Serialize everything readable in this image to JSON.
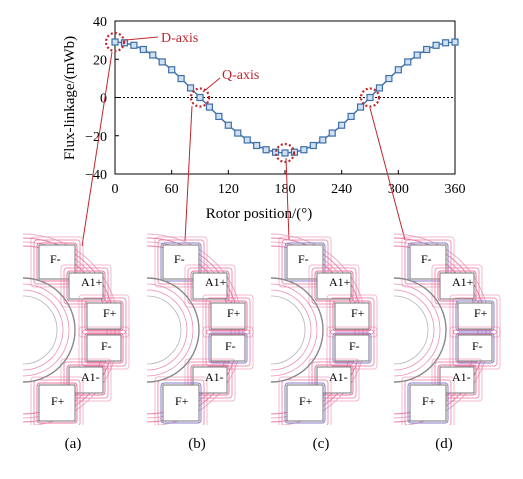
{
  "chart_data": {
    "type": "line",
    "xlabel": "Rotor position/(°)",
    "ylabel": "Flux-linkage/(mWb)",
    "xlim": [
      0,
      360
    ],
    "ylim": [
      -40,
      40
    ],
    "xticks": [
      "0",
      "60",
      "120",
      "180",
      "240",
      "300",
      "360"
    ],
    "yticks": [
      "40",
      "20",
      "0",
      "−20",
      "−40"
    ],
    "zero_line": "dotted",
    "grid": false,
    "series": [
      {
        "color": "#3e6fa8",
        "marker": "square",
        "x": [
          0,
          10,
          20,
          30,
          40,
          50,
          60,
          70,
          80,
          90,
          100,
          110,
          120,
          130,
          140,
          150,
          160,
          170,
          180,
          190,
          200,
          210,
          220,
          230,
          240,
          250,
          260,
          270,
          280,
          290,
          300,
          310,
          320,
          330,
          340,
          350,
          360
        ],
        "y": [
          29,
          28.6,
          27.3,
          25.1,
          22.2,
          18.6,
          14.5,
          9.9,
          5.0,
          0,
          -5.0,
          -9.9,
          -14.5,
          -18.6,
          -22.2,
          -25.1,
          -27.3,
          -28.6,
          -29,
          -28.6,
          -27.3,
          -25.1,
          -22.2,
          -18.6,
          -14.5,
          -9.9,
          -5.0,
          0,
          5.0,
          9.9,
          14.5,
          18.6,
          22.2,
          25.1,
          27.3,
          28.6,
          29
        ]
      }
    ],
    "annotations": [
      {
        "text": "D-axis",
        "x": 0,
        "y": 29
      },
      {
        "text": "Q-axis",
        "x": 90,
        "y": 0
      }
    ],
    "highlight_points": [
      {
        "x": 0,
        "y": 29
      },
      {
        "x": 90,
        "y": 0
      },
      {
        "x": 180,
        "y": -29
      },
      {
        "x": 270,
        "y": 0
      }
    ]
  },
  "panels": [
    {
      "caption": "(a)",
      "poles": [
        "F-",
        "A1+",
        "F+",
        "F-",
        "A1-",
        "F+"
      ]
    },
    {
      "caption": "(b)",
      "poles": [
        "F-",
        "A1+",
        "F+",
        "F-",
        "A1-",
        "F+"
      ]
    },
    {
      "caption": "(c)",
      "poles": [
        "F-",
        "A1+",
        "F+",
        "F-",
        "A1-",
        "F+"
      ]
    },
    {
      "caption": "(d)",
      "poles": [
        "F-",
        "A1+",
        "F+",
        "F-",
        "A1-",
        "F+"
      ]
    }
  ],
  "colors": {
    "series": "#3e6fa8",
    "annotation": "#c0262d",
    "flux_pink": "#e8739e",
    "flux_blue": "#8a7bc8"
  }
}
